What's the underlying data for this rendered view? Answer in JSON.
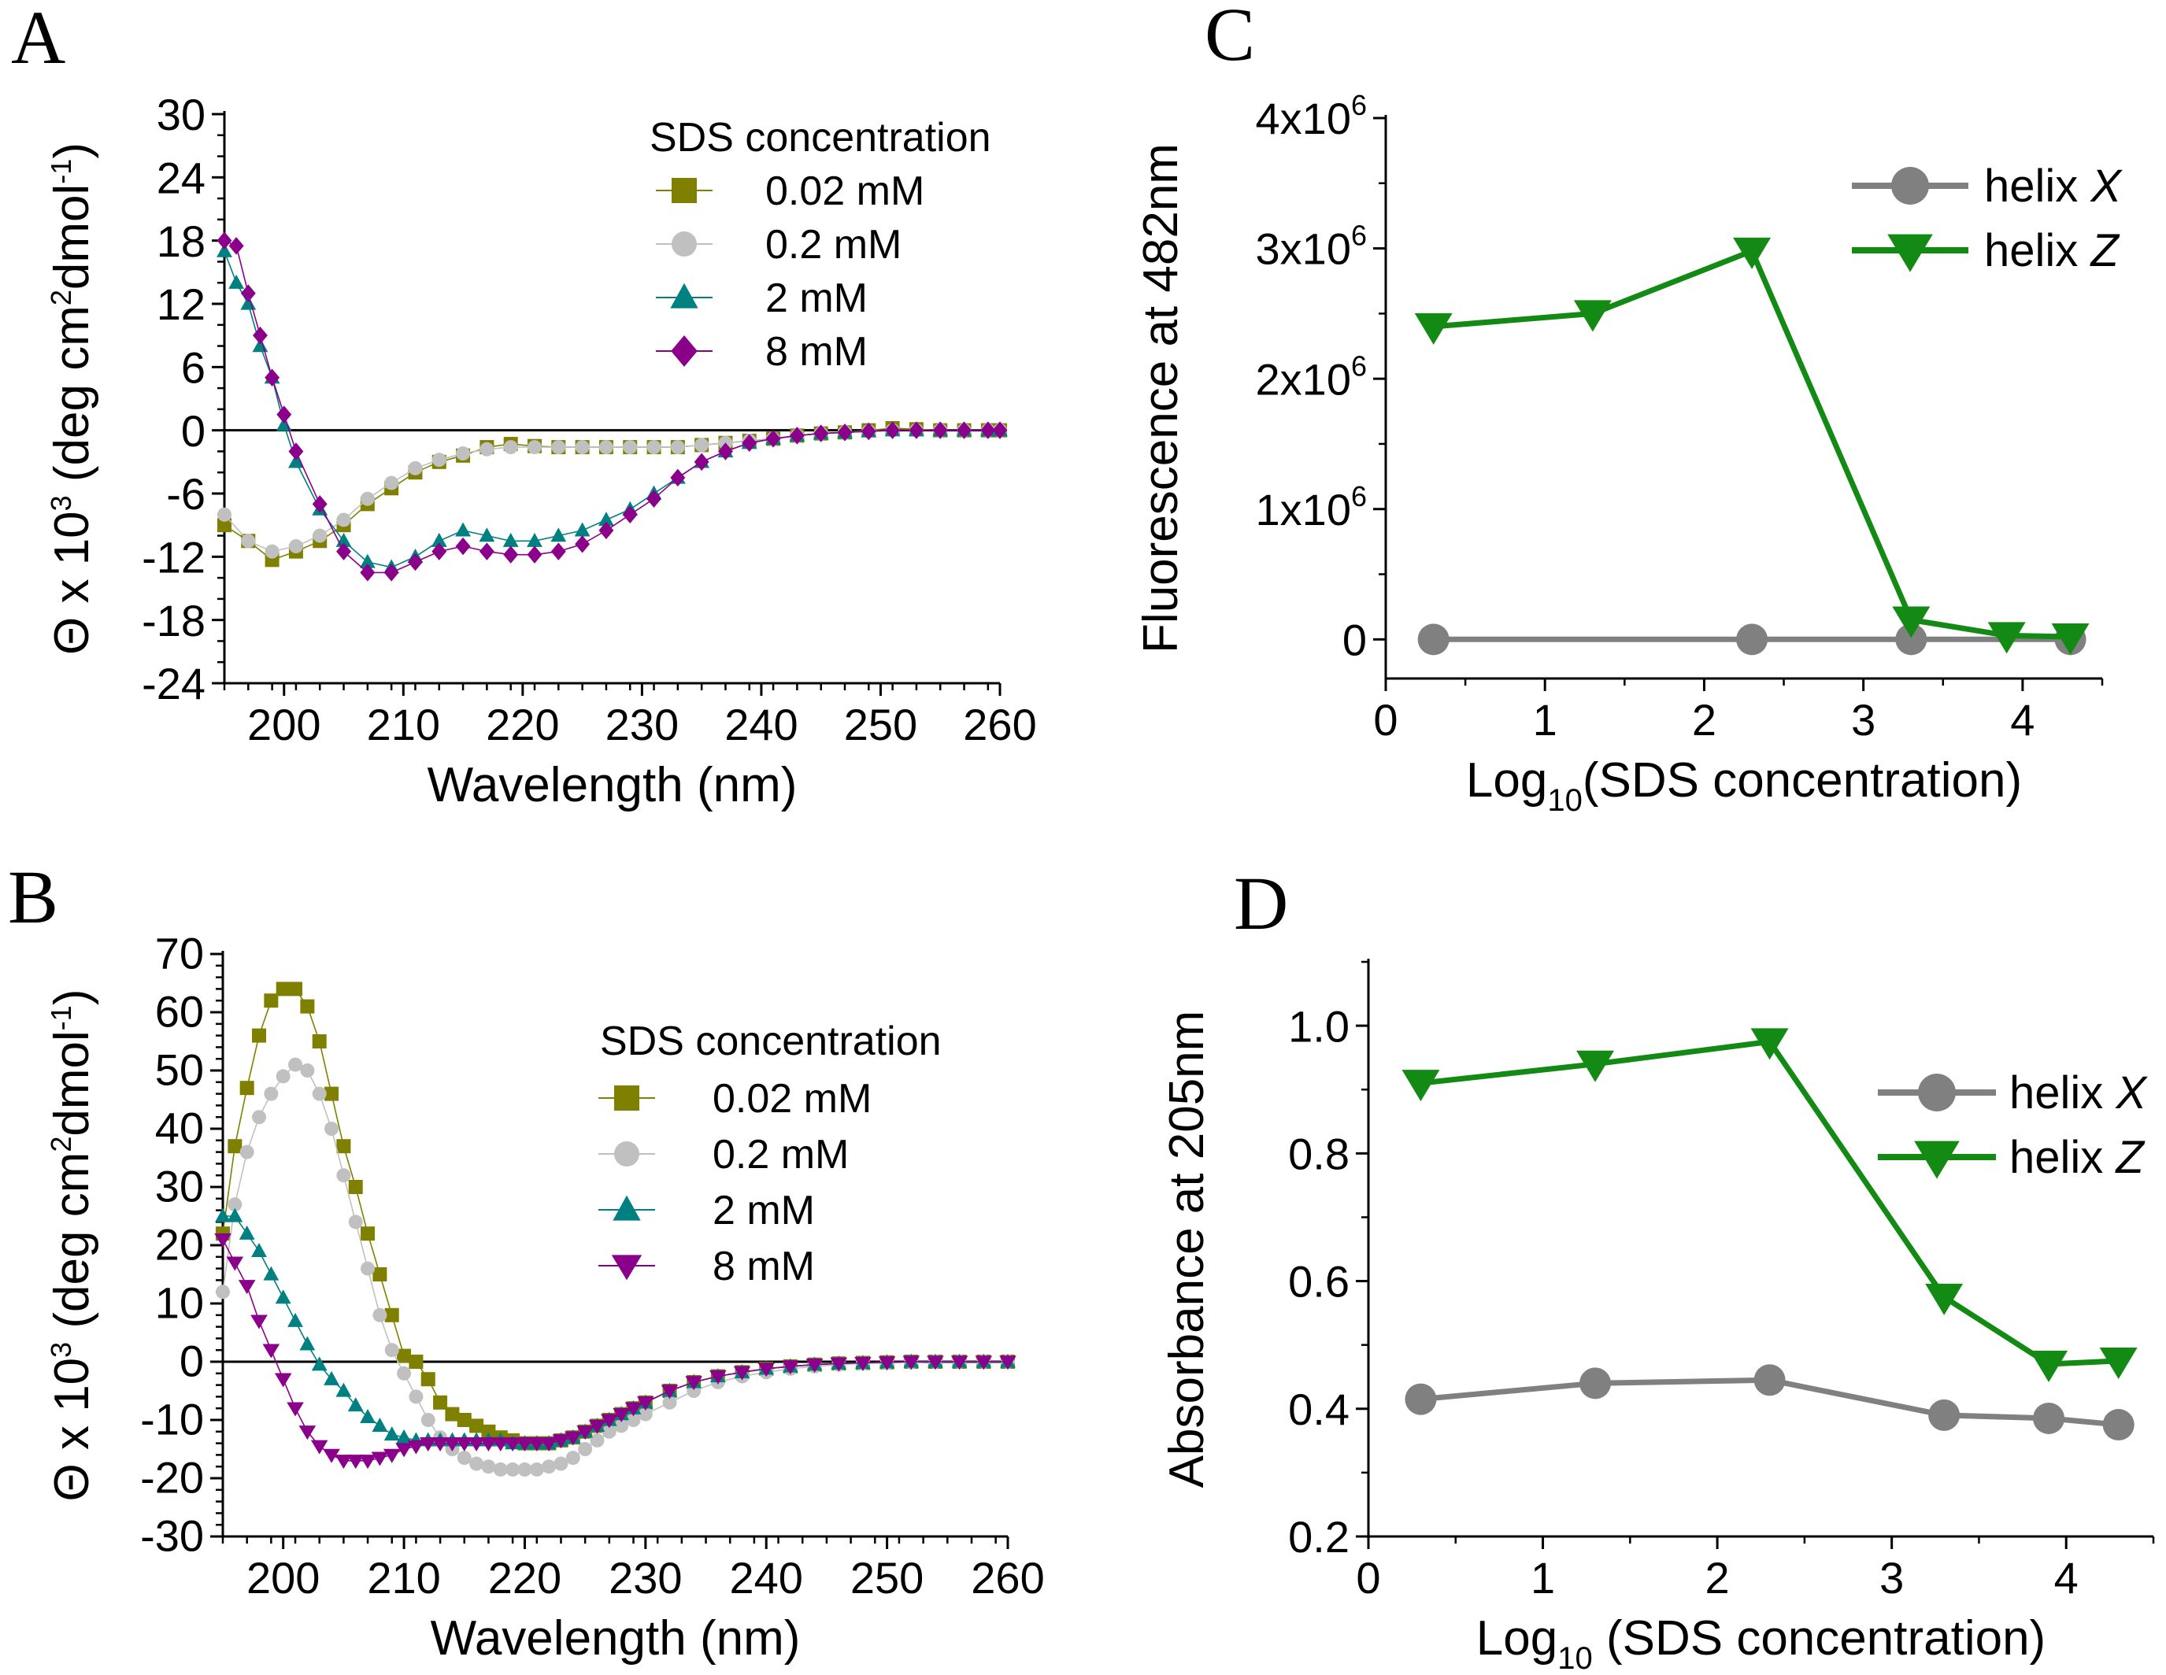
{
  "figure": {
    "panels": [
      {
        "id": "A",
        "letter": "A"
      },
      {
        "id": "B",
        "letter": "B"
      },
      {
        "id": "C",
        "letter": "C"
      },
      {
        "id": "D",
        "letter": "D"
      }
    ]
  },
  "chart_data": [
    {
      "panel": "A",
      "type": "line",
      "title": "",
      "xlabel": "Wavelength (nm)",
      "ylabel_parts": [
        "Θ x 10",
        "3",
        " (deg cm",
        "2",
        "dmol",
        "-1",
        ")"
      ],
      "xlim": [
        195,
        260
      ],
      "ylim": [
        -24,
        30
      ],
      "xticks": [
        200,
        210,
        220,
        230,
        240,
        250,
        260
      ],
      "yticks": [
        -24,
        -18,
        -12,
        -6,
        0,
        6,
        12,
        18,
        24,
        30
      ],
      "zero_line": true,
      "legend_title": "SDS concentration",
      "series": [
        {
          "name": "0.02 mM",
          "color": "#808000",
          "marker": "square",
          "x": [
            195,
            197,
            199,
            201,
            203,
            205,
            207,
            209,
            211,
            213,
            215,
            217,
            219,
            221,
            223,
            225,
            227,
            229,
            231,
            233,
            235,
            237,
            239,
            241,
            243,
            245,
            247,
            249,
            251,
            253,
            255,
            257,
            259,
            260
          ],
          "y": [
            -9,
            -10.5,
            -12.3,
            -11.5,
            -10.5,
            -9,
            -7,
            -5.5,
            -4,
            -3,
            -2.4,
            -1.6,
            -1.3,
            -1.5,
            -1.6,
            -1.6,
            -1.6,
            -1.6,
            -1.6,
            -1.6,
            -1.4,
            -1.2,
            -1.0,
            -0.8,
            -0.5,
            -0.3,
            -0.2,
            0,
            0.2,
            0.1,
            0,
            0,
            0,
            0
          ]
        },
        {
          "name": "0.2 mM",
          "color": "#c0c0c0",
          "marker": "circle",
          "x": [
            195,
            197,
            199,
            201,
            203,
            205,
            207,
            209,
            211,
            213,
            215,
            217,
            219,
            221,
            223,
            225,
            227,
            229,
            231,
            233,
            235,
            237,
            239,
            241,
            243,
            245,
            247,
            249,
            251,
            253,
            255,
            257,
            259,
            260
          ],
          "y": [
            -8,
            -10.5,
            -11.5,
            -11,
            -10,
            -8.5,
            -6.5,
            -5,
            -3.6,
            -2.8,
            -2.2,
            -1.8,
            -1.6,
            -1.6,
            -1.6,
            -1.6,
            -1.6,
            -1.6,
            -1.6,
            -1.6,
            -1.4,
            -1.2,
            -1.0,
            -0.8,
            -0.5,
            -0.3,
            -0.2,
            -0.1,
            0,
            0,
            0,
            0,
            0,
            0
          ]
        },
        {
          "name": "2 mM",
          "color": "#008080",
          "marker": "triangle-up",
          "x": [
            195,
            196,
            197,
            198,
            199,
            200,
            201,
            203,
            205,
            207,
            209,
            211,
            213,
            215,
            217,
            219,
            221,
            223,
            225,
            227,
            229,
            231,
            233,
            235,
            237,
            239,
            241,
            243,
            245,
            247,
            249,
            251,
            253,
            255,
            257,
            259,
            260
          ],
          "y": [
            17,
            14,
            12,
            8,
            5,
            0.5,
            -3,
            -7.5,
            -10.5,
            -12.5,
            -13,
            -12,
            -10.5,
            -9.5,
            -10,
            -10.5,
            -10.5,
            -10,
            -9.5,
            -8.5,
            -7.5,
            -6,
            -4.5,
            -3,
            -2,
            -1.2,
            -0.8,
            -0.5,
            -0.3,
            -0.2,
            -0.1,
            0,
            0,
            0,
            0,
            0,
            0
          ]
        },
        {
          "name": "8 mM",
          "color": "#8b008b",
          "marker": "diamond",
          "x": [
            195,
            196,
            197,
            198,
            199,
            200,
            201,
            203,
            205,
            207,
            209,
            211,
            213,
            215,
            217,
            219,
            221,
            223,
            225,
            227,
            229,
            231,
            233,
            235,
            237,
            239,
            241,
            243,
            245,
            247,
            249,
            251,
            253,
            255,
            257,
            259,
            260
          ],
          "y": [
            18,
            17.5,
            13,
            9,
            5,
            1.5,
            -2,
            -7,
            -11.5,
            -13.5,
            -13.5,
            -12.5,
            -11.5,
            -11,
            -11.5,
            -11.8,
            -11.8,
            -11.5,
            -10.8,
            -9.5,
            -8,
            -6.5,
            -4.5,
            -3,
            -2,
            -1.2,
            -0.8,
            -0.5,
            -0.3,
            -0.2,
            -0.1,
            0,
            0,
            0,
            0,
            0,
            0
          ]
        }
      ]
    },
    {
      "panel": "B",
      "type": "line",
      "title": "",
      "xlabel": "Wavelength (nm)",
      "ylabel_parts": [
        "Θ x 10",
        "3",
        " (deg cm",
        "2",
        "dmol",
        "-1",
        ")"
      ],
      "xlim": [
        195,
        260
      ],
      "ylim": [
        -30,
        70
      ],
      "xticks": [
        200,
        210,
        220,
        230,
        240,
        250,
        260
      ],
      "yticks": [
        -30,
        -20,
        -10,
        0,
        10,
        20,
        30,
        40,
        50,
        60,
        70
      ],
      "zero_line": true,
      "legend_title": "SDS concentration",
      "series": [
        {
          "name": "0.02 mM",
          "color": "#808000",
          "marker": "square",
          "x": [
            195,
            196,
            197,
            198,
            199,
            200,
            201,
            202,
            203,
            204,
            205,
            206,
            207,
            208,
            209,
            210,
            211,
            212,
            213,
            214,
            215,
            216,
            217,
            218,
            219,
            220,
            221,
            222,
            223,
            224,
            225,
            226,
            227,
            228,
            229,
            230,
            232,
            234,
            236,
            238,
            240,
            242,
            244,
            246,
            248,
            250,
            252,
            254,
            256,
            258,
            260
          ],
          "y": [
            22,
            37,
            47,
            56,
            62,
            64,
            64,
            61,
            55,
            46,
            37,
            30,
            22,
            15,
            8,
            1,
            0,
            -3,
            -7,
            -9,
            -10,
            -11,
            -12,
            -13,
            -13.5,
            -14,
            -14,
            -14,
            -13.5,
            -13,
            -12,
            -11,
            -10,
            -9,
            -8,
            -7,
            -5,
            -3.5,
            -2.5,
            -1.8,
            -1.2,
            -0.8,
            -0.5,
            -0.3,
            -0.2,
            -0.1,
            0,
            0,
            0,
            0,
            0
          ]
        },
        {
          "name": "0.2 mM",
          "color": "#c0c0c0",
          "marker": "circle",
          "x": [
            195,
            196,
            197,
            198,
            199,
            200,
            201,
            202,
            203,
            204,
            205,
            206,
            207,
            208,
            209,
            210,
            211,
            212,
            213,
            214,
            215,
            216,
            217,
            218,
            219,
            220,
            221,
            222,
            223,
            224,
            225,
            226,
            227,
            228,
            229,
            230,
            232,
            234,
            236,
            238,
            240,
            242,
            244,
            246,
            248,
            250,
            252,
            254,
            256,
            258,
            260
          ],
          "y": [
            12,
            27,
            36,
            42,
            46,
            49,
            51,
            50,
            46,
            40,
            32,
            24,
            16,
            8,
            2,
            -2,
            -6,
            -10,
            -13,
            -15,
            -16.5,
            -17.5,
            -18,
            -18.5,
            -18.5,
            -18.5,
            -18.5,
            -18,
            -17.5,
            -16.5,
            -15,
            -13.5,
            -12,
            -11,
            -10,
            -9,
            -7,
            -5,
            -3.5,
            -2.5,
            -1.8,
            -1.2,
            -0.8,
            -0.5,
            -0.3,
            -0.2,
            -0.1,
            0,
            0,
            0,
            0
          ]
        },
        {
          "name": "2 mM",
          "color": "#008080",
          "marker": "triangle-up",
          "x": [
            195,
            196,
            197,
            198,
            199,
            200,
            201,
            202,
            203,
            204,
            205,
            206,
            207,
            208,
            209,
            210,
            211,
            212,
            213,
            214,
            215,
            216,
            217,
            218,
            219,
            220,
            221,
            222,
            223,
            224,
            225,
            226,
            227,
            228,
            229,
            230,
            232,
            234,
            236,
            238,
            240,
            242,
            244,
            246,
            248,
            250,
            252,
            254,
            256,
            258,
            260
          ],
          "y": [
            25,
            25,
            22,
            19,
            15,
            11,
            7,
            3,
            -0.5,
            -3,
            -5,
            -7.5,
            -9.5,
            -11,
            -12.5,
            -13,
            -13.5,
            -13.5,
            -13.5,
            -13.5,
            -13.5,
            -13.5,
            -13.5,
            -13.5,
            -14,
            -14,
            -14,
            -14,
            -13.5,
            -13,
            -12,
            -11,
            -10,
            -9,
            -8,
            -7,
            -5,
            -3.5,
            -2.5,
            -1.8,
            -1.2,
            -0.8,
            -0.5,
            -0.3,
            -0.2,
            -0.1,
            0,
            0,
            0,
            0,
            0
          ]
        },
        {
          "name": "8 mM",
          "color": "#8b008b",
          "marker": "triangle-down",
          "x": [
            195,
            196,
            197,
            198,
            199,
            200,
            201,
            202,
            203,
            204,
            205,
            206,
            207,
            208,
            209,
            210,
            211,
            212,
            213,
            214,
            215,
            216,
            217,
            218,
            219,
            220,
            221,
            222,
            223,
            224,
            225,
            226,
            227,
            228,
            229,
            230,
            232,
            234,
            236,
            238,
            240,
            242,
            244,
            246,
            248,
            250,
            252,
            254,
            256,
            258,
            260
          ],
          "y": [
            21,
            17,
            13,
            7,
            2,
            -3,
            -8,
            -12,
            -14.5,
            -16,
            -17,
            -17,
            -17,
            -16.5,
            -16,
            -15,
            -14.5,
            -14,
            -14,
            -14,
            -14,
            -14,
            -14,
            -14,
            -14,
            -14,
            -14,
            -14,
            -13.5,
            -13,
            -12,
            -11,
            -10,
            -9,
            -8,
            -7,
            -5,
            -3.5,
            -2.5,
            -1.8,
            -1.2,
            -0.8,
            -0.5,
            -0.3,
            -0.2,
            -0.1,
            0,
            0,
            0,
            0,
            0
          ]
        }
      ]
    },
    {
      "panel": "C",
      "type": "line",
      "title": "",
      "xlabel_parts": [
        "Log",
        "10",
        "(SDS concentration)"
      ],
      "ylabel": "Fluorescence at 482nm",
      "xlim": [
        0,
        4.5
      ],
      "ylim": [
        -300000,
        4000000
      ],
      "xticks": [
        0,
        1,
        2,
        3,
        4
      ],
      "xtick_labels": [
        "0",
        "1",
        "2",
        "3",
        "4"
      ],
      "yticks": [
        0,
        1000000,
        2000000,
        3000000,
        4000000
      ],
      "ytick_labels": [
        {
          "base": "0",
          "exp": ""
        },
        {
          "base": "1x10",
          "exp": "6"
        },
        {
          "base": "2x10",
          "exp": "6"
        },
        {
          "base": "3x10",
          "exp": "6"
        },
        {
          "base": "4x10",
          "exp": "6"
        }
      ],
      "series": [
        {
          "name": "helix ",
          "name_italic": "X",
          "color": "#808080",
          "marker": "circle",
          "x": [
            0.3,
            2.3,
            3.3,
            4.3
          ],
          "y": [
            0,
            0,
            0,
            0
          ]
        },
        {
          "name": "helix ",
          "name_italic": "Z",
          "color": "#138a13",
          "marker": "triangle-down",
          "x": [
            0.3,
            1.3,
            2.3,
            3.3,
            3.9,
            4.3
          ],
          "y": [
            2400000,
            2500000,
            2980000,
            150000,
            30000,
            20000
          ]
        }
      ]
    },
    {
      "panel": "D",
      "type": "line",
      "title": "",
      "xlabel_parts": [
        "Log",
        "10",
        " (SDS concentration)"
      ],
      "ylabel": "Absorbance at 205nm",
      "xlim": [
        0,
        4.5
      ],
      "ylim": [
        0.2,
        1.1
      ],
      "xticks": [
        0,
        1,
        2,
        3,
        4
      ],
      "xtick_labels": [
        "0",
        "1",
        "2",
        "3",
        "4"
      ],
      "yticks": [
        0.2,
        0.4,
        0.6,
        0.8,
        1.0
      ],
      "ytick_labels": [
        "0.2",
        "0.4",
        "0.6",
        "0.8",
        "1.0"
      ],
      "series": [
        {
          "name": "helix ",
          "name_italic": "X",
          "color": "#808080",
          "marker": "circle",
          "x": [
            0.3,
            1.3,
            2.3,
            3.3,
            3.9,
            4.3
          ],
          "y": [
            0.415,
            0.44,
            0.445,
            0.39,
            0.385,
            0.375
          ]
        },
        {
          "name": "helix ",
          "name_italic": "Z",
          "color": "#138a13",
          "marker": "triangle-down",
          "x": [
            0.3,
            1.3,
            2.3,
            3.3,
            3.9,
            4.3
          ],
          "y": [
            0.91,
            0.94,
            0.975,
            0.575,
            0.47,
            0.475
          ]
        }
      ]
    }
  ]
}
